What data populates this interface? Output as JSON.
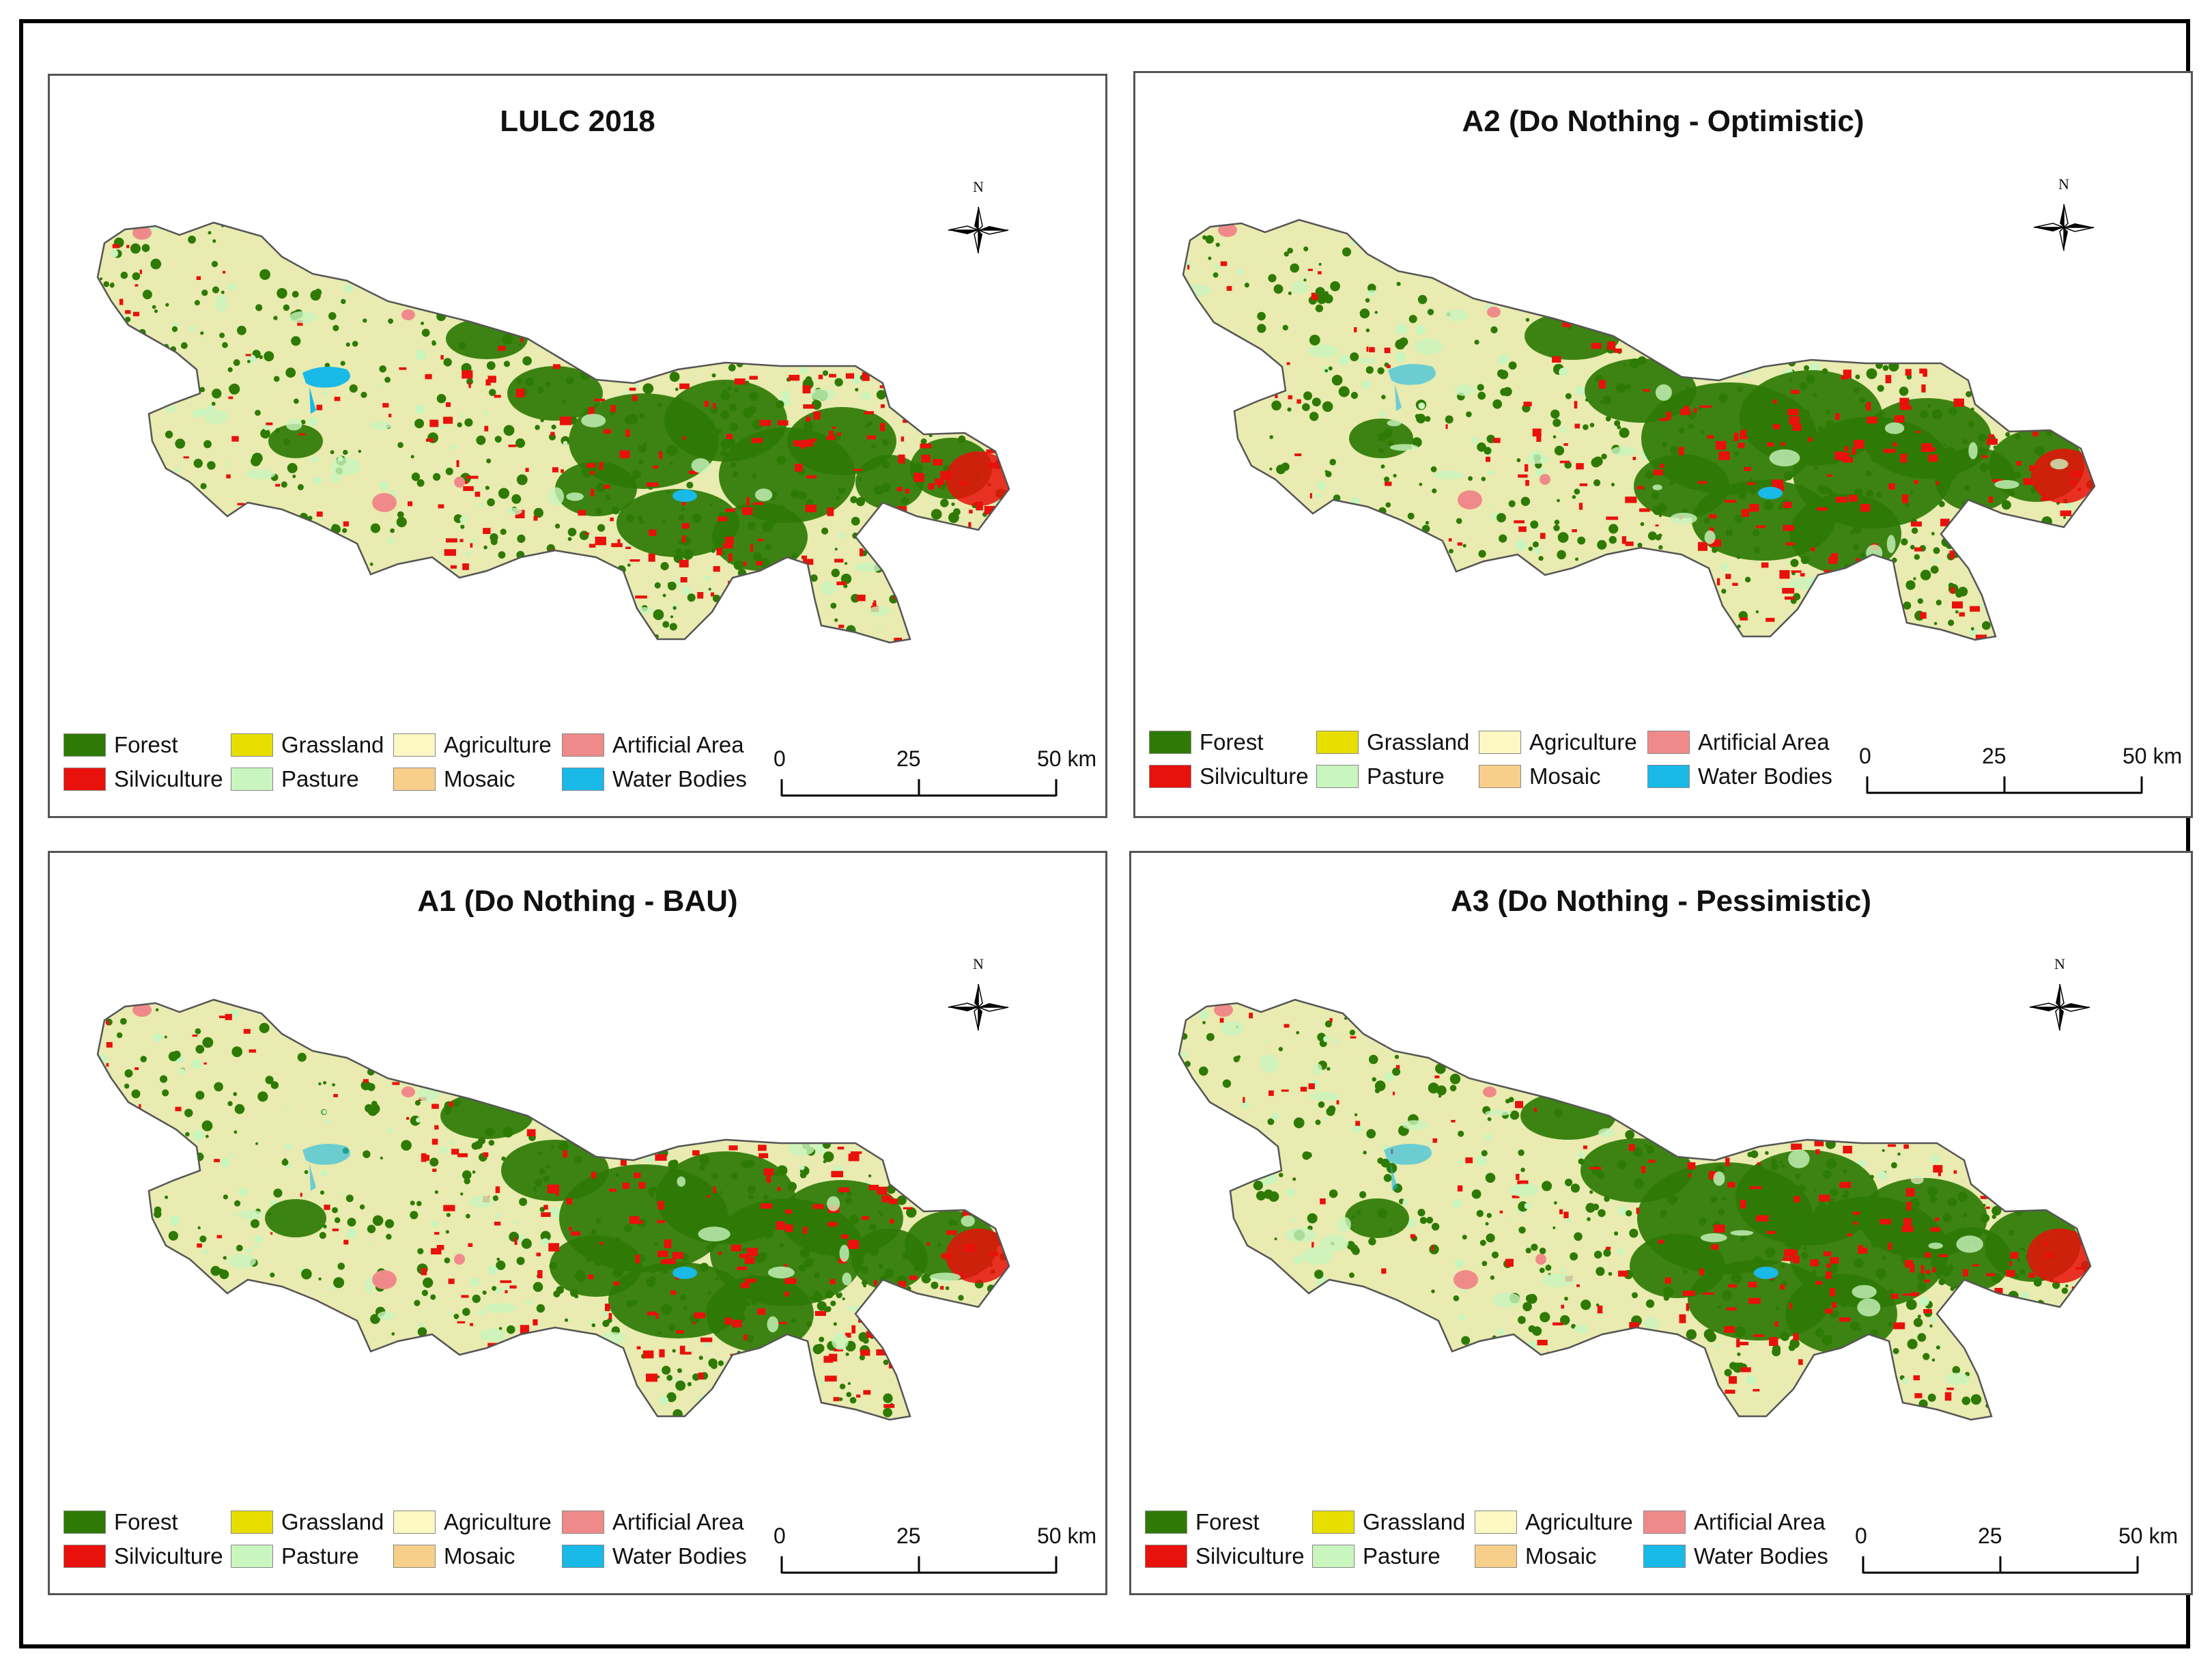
{
  "figure": {
    "panels": [
      {
        "id": "lulc-2018",
        "title": "LULC 2018"
      },
      {
        "id": "a2",
        "title": "A2 (Do Nothing - Optimistic)"
      },
      {
        "id": "a1",
        "title": "A1 (Do Nothing - BAU)"
      },
      {
        "id": "a3",
        "title": "A3 (Do Nothing - Pessimistic)"
      }
    ],
    "north_label": "N",
    "legend": [
      {
        "label": "Forest",
        "color": "#2e7a05"
      },
      {
        "label": "Silviculture",
        "color": "#e8110b"
      },
      {
        "label": "Grassland",
        "color": "#e6df00"
      },
      {
        "label": "Pasture",
        "color": "#c9f5be"
      },
      {
        "label": "Agriculture",
        "color": "#fcf8c4"
      },
      {
        "label": "Mosaic",
        "color": "#f8cf8a"
      },
      {
        "label": "Artificial Area",
        "color": "#f08a8a"
      },
      {
        "label": "Water Bodies",
        "color": "#19b9e8"
      }
    ],
    "scale": {
      "ticks": [
        "0",
        "25",
        "50 km"
      ]
    }
  },
  "map_colors": {
    "agriculture_base": "#e9ebb0",
    "forest": "#2e7a05",
    "silviculture": "#e8110b",
    "pasture": "#c9f5be",
    "artificial": "#f08a8a",
    "water": "#19b9e8",
    "outline": "#555555"
  },
  "map_icons": [
    "north-arrow-icon",
    "scale-bar"
  ]
}
